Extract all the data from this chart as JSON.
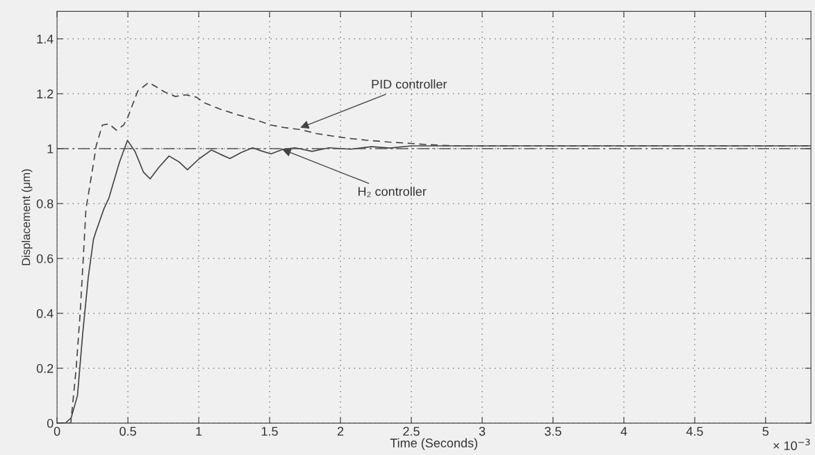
{
  "chart_data": {
    "type": "line",
    "xlabel": "Time (Seconds)",
    "ylabel": "Displacement (μm)",
    "xlim": [
      0,
      5.32
    ],
    "ylim": [
      0,
      1.5
    ],
    "xticks": [
      0,
      0.5,
      1,
      1.5,
      2,
      2.5,
      3,
      3.5,
      4,
      4.5,
      5
    ],
    "yticks": [
      0,
      0.2,
      0.4,
      0.6,
      0.8,
      1,
      1.2,
      1.4
    ],
    "grid": true,
    "legend": false,
    "marker": "none",
    "series": [
      {
        "color": "#444444",
        "line_style": "solid",
        "x": [
          0,
          0.06,
          0.1,
          0.144,
          0.18,
          0.22,
          0.257,
          0.276,
          0.33,
          0.366,
          0.44,
          0.497,
          0.55,
          0.61,
          0.657,
          0.72,
          0.79,
          0.86,
          0.92,
          1.0,
          1.09,
          1.15,
          1.22,
          1.3,
          1.38,
          1.44,
          1.51,
          1.59,
          1.68,
          1.8,
          1.92,
          2.07,
          2.22,
          2.35,
          2.5,
          3.0,
          4.0,
          5.32
        ],
        "values": [
          0,
          0,
          0.02,
          0.1,
          0.32,
          0.53,
          0.67,
          0.7,
          0.78,
          0.82,
          0.95,
          1.03,
          0.99,
          0.914,
          0.89,
          0.933,
          0.973,
          0.952,
          0.923,
          0.962,
          0.995,
          0.98,
          0.964,
          0.986,
          1.003,
          0.992,
          0.981,
          0.997,
          1.003,
          0.99,
          1.003,
          0.998,
          1.007,
          1.002,
          1.01,
          1.01,
          1.01,
          1.01
        ]
      },
      {
        "color": "#444444",
        "line_style": "dashed",
        "x": [
          0,
          0.097,
          0.135,
          0.163,
          0.185,
          0.204,
          0.253,
          0.276,
          0.32,
          0.366,
          0.42,
          0.47,
          0.5,
          0.535,
          0.57,
          0.647,
          0.7,
          0.76,
          0.835,
          0.91,
          0.985,
          1.04,
          1.15,
          1.27,
          1.4,
          1.51,
          1.6,
          1.72,
          1.83,
          1.94,
          2.05,
          2.18,
          2.34,
          2.5,
          2.6,
          2.8,
          4.0,
          5.32
        ],
        "values": [
          0,
          0,
          0.2,
          0.4,
          0.6,
          0.78,
          0.933,
          1.01,
          1.086,
          1.09,
          1.067,
          1.086,
          1.115,
          1.163,
          1.21,
          1.241,
          1.225,
          1.206,
          1.19,
          1.196,
          1.187,
          1.167,
          1.144,
          1.124,
          1.105,
          1.086,
          1.077,
          1.069,
          1.055,
          1.046,
          1.038,
          1.031,
          1.024,
          1.019,
          1.015,
          1.01,
          1.01,
          1.01
        ]
      }
    ],
    "ref_lines": [
      {
        "axis": "y",
        "value": 1,
        "color": "#555555",
        "line_style": "dashed"
      }
    ],
    "annotations": [
      {
        "text": "PID controller",
        "x": 1.716,
        "y": 1.076
      },
      {
        "text": "H₂ controller",
        "x": 1.59,
        "y": 0.997
      },
      "× 10$^{−3}$"
    ]
  }
}
